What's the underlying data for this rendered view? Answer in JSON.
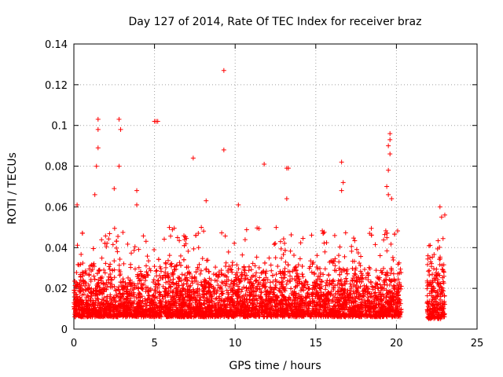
{
  "chart_data": {
    "type": "scatter",
    "title": "Day 127 of 2014, Rate Of TEC Index for receiver braz",
    "xlabel": "GPS time / hours",
    "ylabel": "ROTI / TECUs",
    "xlim": [
      0,
      25
    ],
    "ylim": [
      0,
      0.14
    ],
    "x_ticks": [
      0,
      5,
      10,
      15,
      20,
      25
    ],
    "y_ticks": [
      0,
      0.02,
      0.04,
      0.06,
      0.08,
      0.1,
      0.12,
      0.14
    ],
    "grid": true,
    "legend": "none",
    "marker": "+",
    "color": "#ff0000",
    "outliers": [
      [
        9.3,
        0.127
      ],
      [
        1.5,
        0.103
      ],
      [
        2.8,
        0.103
      ],
      [
        1.5,
        0.098
      ],
      [
        2.9,
        0.098
      ],
      [
        5.0,
        0.102
      ],
      [
        5.1,
        0.102
      ],
      [
        5.2,
        0.102
      ],
      [
        19.6,
        0.096
      ],
      [
        19.6,
        0.093
      ],
      [
        19.5,
        0.09
      ],
      [
        1.5,
        0.089
      ],
      [
        9.3,
        0.088
      ],
      [
        19.6,
        0.086
      ],
      [
        7.4,
        0.084
      ],
      [
        16.6,
        0.082
      ],
      [
        11.8,
        0.081
      ],
      [
        1.4,
        0.08
      ],
      [
        2.8,
        0.08
      ],
      [
        13.2,
        0.079
      ],
      [
        13.3,
        0.079
      ],
      [
        19.5,
        0.078
      ],
      [
        16.7,
        0.072
      ],
      [
        19.4,
        0.07
      ],
      [
        16.6,
        0.068
      ],
      [
        2.5,
        0.069
      ],
      [
        3.9,
        0.068
      ],
      [
        19.5,
        0.066
      ],
      [
        1.3,
        0.066
      ],
      [
        8.2,
        0.063
      ],
      [
        19.7,
        0.064
      ],
      [
        13.2,
        0.064
      ],
      [
        3.9,
        0.061
      ],
      [
        10.2,
        0.061
      ],
      [
        22.7,
        0.06
      ],
      [
        23.0,
        0.056
      ],
      [
        0.2,
        0.061
      ],
      [
        22.8,
        0.055
      ]
    ],
    "clusters": [
      {
        "x_range": [
          0.0,
          20.3
        ],
        "typical_y": [
          0.006,
          0.03
        ],
        "max_y": 0.05
      },
      {
        "x_range": [
          21.9,
          22.8
        ],
        "typical_y": [
          0.005,
          0.035
        ],
        "max_y": 0.045
      },
      {
        "x_range": [
          22.8,
          23.0
        ],
        "typical_y": [
          0.006,
          0.03
        ],
        "max_y": 0.047
      }
    ]
  }
}
